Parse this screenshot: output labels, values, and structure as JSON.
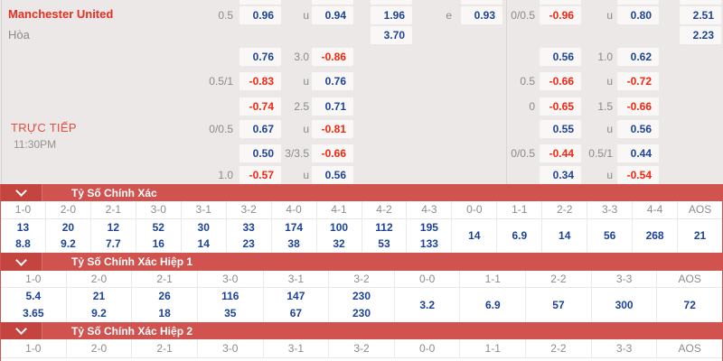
{
  "colors": {
    "odds_bg": "#ebe8e7",
    "cell_bg": "#f9f8f7",
    "value_blue": "#1c4397",
    "value_red": "#f5250f",
    "team_red": "#e72d20",
    "live_red": "#e04e41",
    "label_gray": "#8c8a88",
    "banner_red": "#d0534f",
    "banner_toggle_red": "#c4443f",
    "header_gray": "#8e8c8a"
  },
  "odds_panel": {
    "home_team": "Manchester United",
    "draw_label": "Hòa",
    "live_label": "TRỰC TIẾP",
    "match_time": "11:30PM",
    "rows": [
      {
        "cells": [
          {
            "slot": "l1",
            "text": "0.5",
            "type": "label"
          },
          {
            "slot": "a",
            "text": "0.96",
            "type": "blue"
          },
          {
            "slot": "l2",
            "text": "u",
            "type": "label"
          },
          {
            "slot": "b",
            "text": "0.94",
            "type": "blue"
          },
          {
            "slot": "c",
            "text": "1.96",
            "type": "blue"
          },
          {
            "slot": "l3",
            "text": "e",
            "type": "label"
          },
          {
            "slot": "d",
            "text": "0.93",
            "type": "blue"
          },
          {
            "slot": "r1",
            "text": "0/0.5",
            "type": "label"
          },
          {
            "slot": "e",
            "text": "-0.96",
            "type": "red"
          },
          {
            "slot": "r2",
            "text": "u",
            "type": "label"
          },
          {
            "slot": "f",
            "text": "0.80",
            "type": "blue"
          },
          {
            "slot": "g",
            "text": "2.51",
            "type": "blue"
          }
        ]
      },
      {
        "cells": [
          {
            "slot": "c",
            "text": "3.70",
            "type": "blue"
          },
          {
            "slot": "g",
            "text": "2.23",
            "type": "blue"
          }
        ]
      },
      {
        "cells": [
          {
            "slot": "a",
            "text": "0.76",
            "type": "blue"
          },
          {
            "slot": "l2",
            "text": "3.0",
            "type": "label"
          },
          {
            "slot": "b",
            "text": "-0.86",
            "type": "red"
          },
          {
            "slot": "e",
            "text": "0.56",
            "type": "blue"
          },
          {
            "slot": "r2",
            "text": "1.0",
            "type": "label"
          },
          {
            "slot": "f",
            "text": "0.62",
            "type": "blue"
          }
        ]
      },
      {
        "cells": [
          {
            "slot": "l1",
            "text": "0.5/1",
            "type": "label"
          },
          {
            "slot": "a",
            "text": "-0.83",
            "type": "red"
          },
          {
            "slot": "l2",
            "text": "u",
            "type": "label"
          },
          {
            "slot": "b",
            "text": "0.76",
            "type": "blue"
          },
          {
            "slot": "r1",
            "text": "0.5",
            "type": "label"
          },
          {
            "slot": "e",
            "text": "-0.66",
            "type": "red"
          },
          {
            "slot": "r2",
            "text": "u",
            "type": "label"
          },
          {
            "slot": "f",
            "text": "-0.72",
            "type": "red"
          }
        ]
      },
      {
        "cells": [
          {
            "slot": "a",
            "text": "-0.74",
            "type": "red"
          },
          {
            "slot": "l2",
            "text": "2.5",
            "type": "label"
          },
          {
            "slot": "b",
            "text": "0.71",
            "type": "blue"
          },
          {
            "slot": "r1",
            "text": "0",
            "type": "label"
          },
          {
            "slot": "e",
            "text": "-0.65",
            "type": "red"
          },
          {
            "slot": "r2",
            "text": "1.5",
            "type": "label"
          },
          {
            "slot": "f",
            "text": "-0.66",
            "type": "red"
          }
        ]
      },
      {
        "cells": [
          {
            "slot": "l1",
            "text": "0/0.5",
            "type": "label"
          },
          {
            "slot": "a",
            "text": "0.67",
            "type": "blue"
          },
          {
            "slot": "l2",
            "text": "u",
            "type": "label"
          },
          {
            "slot": "b",
            "text": "-0.81",
            "type": "red"
          },
          {
            "slot": "e",
            "text": "0.55",
            "type": "blue"
          },
          {
            "slot": "r2",
            "text": "u",
            "type": "label"
          },
          {
            "slot": "f",
            "text": "0.56",
            "type": "blue"
          }
        ]
      },
      {
        "cells": [
          {
            "slot": "a",
            "text": "0.50",
            "type": "blue"
          },
          {
            "slot": "l2",
            "text": "3/3.5",
            "type": "label"
          },
          {
            "slot": "b",
            "text": "-0.66",
            "type": "red"
          },
          {
            "slot": "r1",
            "text": "0/0.5",
            "type": "label"
          },
          {
            "slot": "e",
            "text": "-0.44",
            "type": "red"
          },
          {
            "slot": "r2",
            "text": "0.5/1",
            "type": "label"
          },
          {
            "slot": "f",
            "text": "0.44",
            "type": "blue"
          }
        ]
      },
      {
        "cells": [
          {
            "slot": "l1",
            "text": "1.0",
            "type": "label"
          },
          {
            "slot": "a",
            "text": "-0.57",
            "type": "red"
          },
          {
            "slot": "l2",
            "text": "u",
            "type": "label"
          },
          {
            "slot": "b",
            "text": "0.56",
            "type": "blue"
          },
          {
            "slot": "e",
            "text": "0.34",
            "type": "blue"
          },
          {
            "slot": "r2",
            "text": "u",
            "type": "label"
          },
          {
            "slot": "f",
            "text": "-0.54",
            "type": "red"
          }
        ]
      }
    ]
  },
  "score_tables": [
    {
      "title": "Tỷ Số Chính Xác",
      "columns": [
        "1-0",
        "2-0",
        "2-1",
        "3-0",
        "3-1",
        "3-2",
        "4-0",
        "4-1",
        "4-2",
        "4-3",
        "0-0",
        "1-1",
        "2-2",
        "3-3",
        "4-4",
        "AOS"
      ],
      "odds": [
        [
          "13",
          "8.8"
        ],
        [
          "20",
          "9.2"
        ],
        [
          "12",
          "7.7"
        ],
        [
          "52",
          "16"
        ],
        [
          "30",
          "14"
        ],
        [
          "33",
          "23"
        ],
        [
          "174",
          "38"
        ],
        [
          "100",
          "32"
        ],
        [
          "112",
          "53"
        ],
        [
          "195",
          "133"
        ],
        [
          "14"
        ],
        [
          "6.9"
        ],
        [
          "14"
        ],
        [
          "56"
        ],
        [
          "268"
        ],
        [
          "21"
        ]
      ]
    },
    {
      "title": "Tỷ Số Chính Xác Hiệp 1",
      "columns": [
        "1-0",
        "2-0",
        "2-1",
        "3-0",
        "3-1",
        "3-2",
        "0-0",
        "1-1",
        "2-2",
        "3-3",
        "AOS"
      ],
      "odds": [
        [
          "5.4",
          "3.65"
        ],
        [
          "21",
          "9.2"
        ],
        [
          "26",
          "18"
        ],
        [
          "116",
          "35"
        ],
        [
          "147",
          "67"
        ],
        [
          "230",
          "230"
        ],
        [
          "3.2"
        ],
        [
          "6.9"
        ],
        [
          "57"
        ],
        [
          "300"
        ],
        [
          "72"
        ]
      ]
    },
    {
      "title": "Tỷ Số Chính Xác Hiệp 2",
      "columns": [
        "1-0",
        "2-0",
        "2-1",
        "3-0",
        "3-1",
        "3-2",
        "0-0",
        "1-1",
        "2-2",
        "3-3",
        "AOS"
      ],
      "odds": []
    }
  ]
}
